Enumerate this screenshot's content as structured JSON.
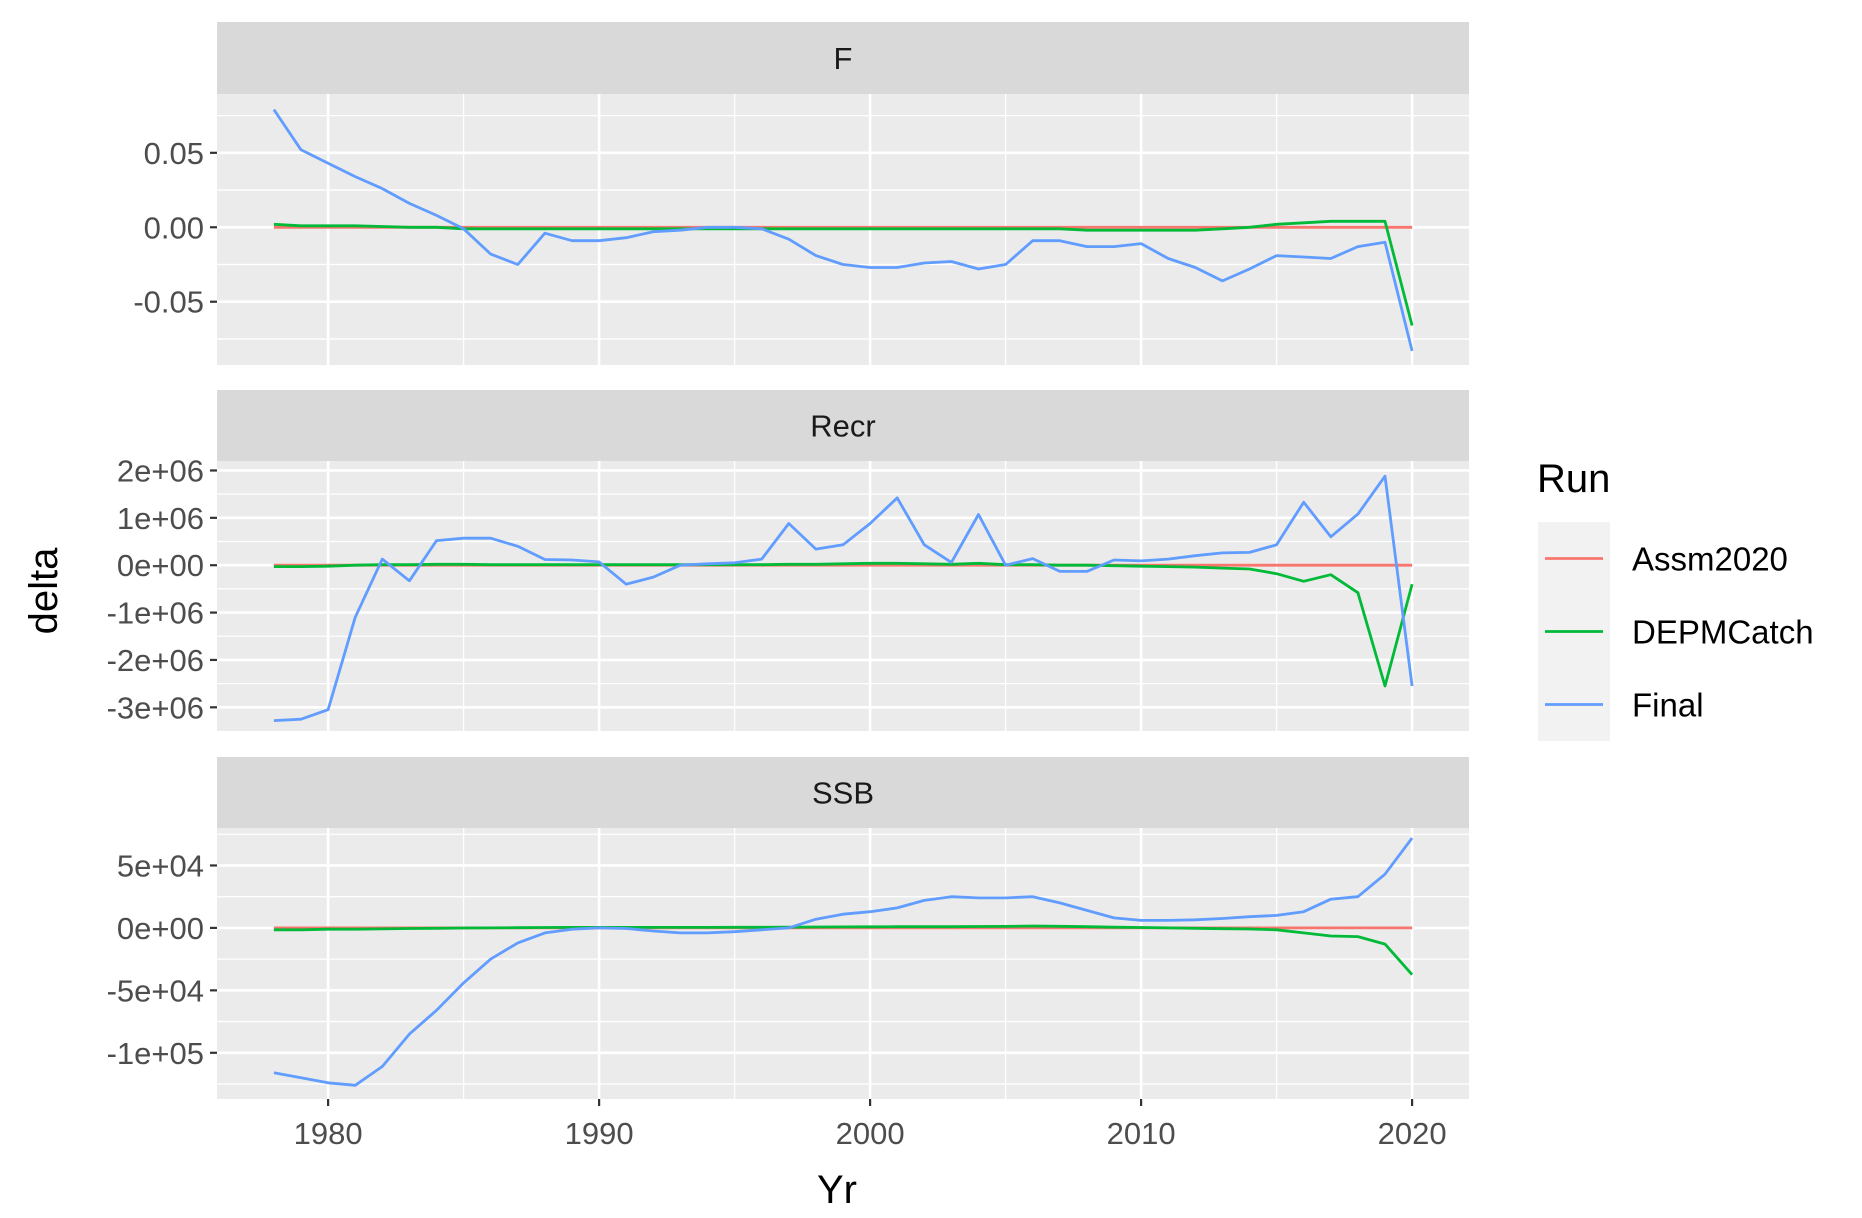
{
  "chart_data": {
    "type": "line",
    "xlabel": "Yr",
    "ylabel": "delta",
    "legend": {
      "title": "Run",
      "position": "right",
      "entries": [
        {
          "name": "Assm2020",
          "color": "#F8766D"
        },
        {
          "name": "DEPMCatch",
          "color": "#00BA38"
        },
        {
          "name": "Final",
          "color": "#619CFF"
        }
      ]
    },
    "x": [
      1978,
      1979,
      1980,
      1981,
      1982,
      1983,
      1984,
      1985,
      1986,
      1987,
      1988,
      1989,
      1990,
      1991,
      1992,
      1993,
      1994,
      1995,
      1996,
      1997,
      1998,
      1999,
      2000,
      2001,
      2002,
      2003,
      2004,
      2005,
      2006,
      2007,
      2008,
      2009,
      2010,
      2011,
      2012,
      2013,
      2014,
      2015,
      2016,
      2017,
      2018,
      2019,
      2020
    ],
    "xlim": [
      1975.9,
      2022.1
    ],
    "xticks": [
      1980,
      1990,
      2000,
      2010,
      2020
    ],
    "xtick_labels": [
      "1980",
      "1990",
      "2000",
      "2010",
      "2020"
    ],
    "grid": true,
    "panels": [
      {
        "strip": "F",
        "ylim": [
          -0.0925,
          0.0895
        ],
        "yticks": [
          -0.05,
          0,
          0.05
        ],
        "ytick_labels": [
          "-0.05",
          "0.00",
          "0.05"
        ],
        "series": [
          {
            "name": "Assm2020",
            "values": [
              0,
              0,
              0,
              0,
              0,
              0,
              0,
              0,
              0,
              0,
              0,
              0,
              0,
              0,
              0,
              0,
              0,
              0,
              0,
              0,
              0,
              0,
              0,
              0,
              0,
              0,
              0,
              0,
              0,
              0,
              0,
              0,
              0,
              0,
              0,
              0,
              0,
              0,
              0,
              0,
              0,
              0,
              0
            ]
          },
          {
            "name": "DEPMCatch",
            "values": [
              0.002,
              0.001,
              0.001,
              0.001,
              0.0005,
              0,
              0,
              -0.001,
              -0.001,
              -0.001,
              -0.001,
              -0.001,
              -0.001,
              -0.001,
              -0.001,
              -0.001,
              -0.001,
              -0.001,
              -0.001,
              -0.001,
              -0.001,
              -0.001,
              -0.001,
              -0.001,
              -0.001,
              -0.001,
              -0.001,
              -0.001,
              -0.001,
              -0.001,
              -0.002,
              -0.002,
              -0.002,
              -0.002,
              -0.002,
              -0.001,
              0,
              0.002,
              0.003,
              0.004,
              0.004,
              0.004,
              -0.066
            ]
          },
          {
            "name": "Final",
            "values": [
              0.079,
              0.052,
              0.043,
              0.034,
              0.026,
              0.016,
              0.008,
              -0.001,
              -0.018,
              -0.025,
              -0.004,
              -0.009,
              -0.009,
              -0.007,
              -0.003,
              -0.002,
              0,
              0,
              -0.001,
              -0.008,
              -0.019,
              -0.025,
              -0.027,
              -0.027,
              -0.024,
              -0.023,
              -0.028,
              -0.025,
              -0.009,
              -0.009,
              -0.013,
              -0.013,
              -0.011,
              -0.021,
              -0.027,
              -0.036,
              -0.028,
              -0.019,
              -0.02,
              -0.021,
              -0.013,
              -0.01,
              -0.083
            ]
          }
        ]
      },
      {
        "strip": "Recr",
        "ylim": [
          -3500000,
          2200000
        ],
        "yticks": [
          -3000000,
          -2000000,
          -1000000,
          0,
          1000000,
          2000000
        ],
        "ytick_labels": [
          "-3e+06",
          "-2e+06",
          "-1e+06",
          "0e+00",
          "1e+06",
          "2e+06"
        ],
        "series": [
          {
            "name": "Assm2020",
            "values": [
              0,
              0,
              0,
              0,
              0,
              0,
              0,
              0,
              0,
              0,
              0,
              0,
              0,
              0,
              0,
              0,
              0,
              0,
              0,
              0,
              0,
              0,
              0,
              0,
              0,
              0,
              0,
              0,
              0,
              0,
              0,
              0,
              0,
              0,
              0,
              0,
              0,
              0,
              0,
              0,
              0,
              0,
              0
            ]
          },
          {
            "name": "DEPMCatch",
            "values": [
              -30000,
              -30000,
              -20000,
              0,
              10000,
              10000,
              20000,
              20000,
              10000,
              10000,
              10000,
              10000,
              10000,
              10000,
              10000,
              10000,
              10000,
              10000,
              10000,
              20000,
              20000,
              30000,
              40000,
              40000,
              30000,
              20000,
              40000,
              10000,
              10000,
              0,
              0,
              -10000,
              -20000,
              -30000,
              -40000,
              -60000,
              -80000,
              -180000,
              -340000,
              -200000,
              -580000,
              -2550000,
              -400000
            ]
          },
          {
            "name": "Final",
            "values": [
              -3280000,
              -3250000,
              -3050000,
              -1100000,
              130000,
              -330000,
              520000,
              570000,
              570000,
              400000,
              120000,
              110000,
              70000,
              -400000,
              -250000,
              0,
              30000,
              50000,
              130000,
              880000,
              340000,
              430000,
              880000,
              1420000,
              430000,
              60000,
              1070000,
              0,
              140000,
              -130000,
              -130000,
              110000,
              90000,
              130000,
              200000,
              260000,
              270000,
              430000,
              1330000,
              600000,
              1080000,
              1880000,
              -2550000
            ]
          }
        ]
      },
      {
        "strip": "SSB",
        "ylim": [
          -137000,
          80000
        ],
        "yticks": [
          -100000,
          -50000,
          0,
          50000
        ],
        "ytick_labels": [
          "-1e+05",
          "-5e+04",
          "0e+00",
          "5e+04"
        ],
        "series": [
          {
            "name": "Assm2020",
            "values": [
              0,
              0,
              0,
              0,
              0,
              0,
              0,
              0,
              0,
              0,
              0,
              0,
              0,
              0,
              0,
              0,
              0,
              0,
              0,
              0,
              0,
              0,
              0,
              0,
              0,
              0,
              0,
              0,
              0,
              0,
              0,
              0,
              0,
              0,
              0,
              0,
              0,
              0,
              0,
              0,
              0,
              0,
              0
            ]
          },
          {
            "name": "DEPMCatch",
            "values": [
              -1500,
              -1500,
              -1000,
              -1000,
              -800,
              -500,
              -300,
              -100,
              0,
              200,
              300,
              400,
              400,
              400,
              400,
              400,
              400,
              500,
              500,
              600,
              700,
              800,
              900,
              1000,
              1000,
              1000,
              1100,
              1200,
              1500,
              1300,
              1000,
              600,
              300,
              0,
              -300,
              -600,
              -900,
              -1500,
              -4000,
              -6500,
              -7000,
              -13000,
              -37500
            ]
          },
          {
            "name": "Final",
            "values": [
              -116000,
              -120000,
              -124000,
              -126000,
              -111000,
              -85000,
              -66000,
              -44000,
              -25000,
              -12000,
              -4000,
              -1000,
              0,
              -500,
              -2500,
              -4000,
              -4000,
              -3000,
              -1500,
              0,
              7000,
              11000,
              13000,
              16000,
              22000,
              25000,
              24000,
              24000,
              25000,
              20000,
              14000,
              8000,
              6000,
              6000,
              6500,
              7500,
              9000,
              10000,
              13000,
              23000,
              25000,
              43000,
              72000
            ]
          }
        ]
      }
    ]
  }
}
